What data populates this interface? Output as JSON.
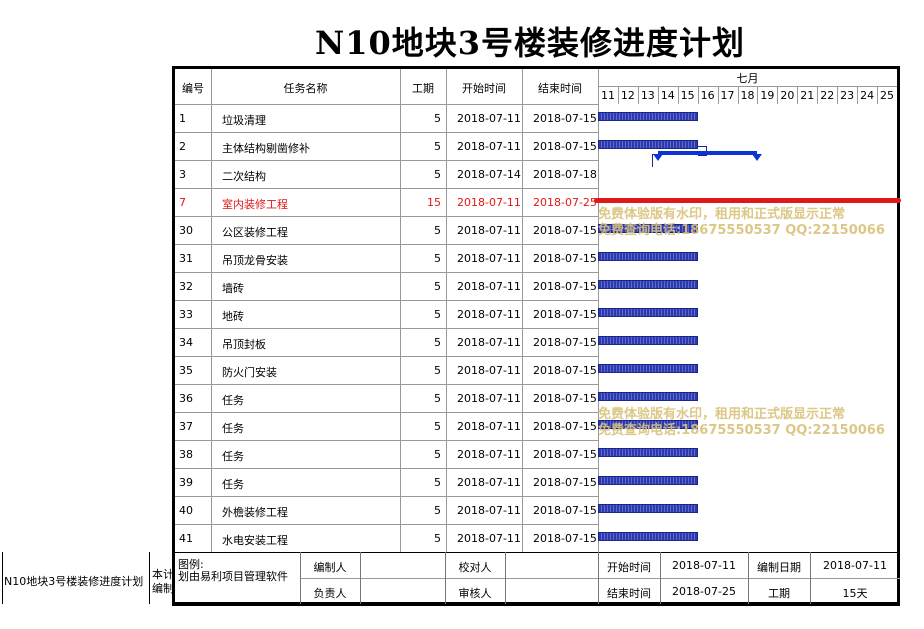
{
  "title": "N10地块3号楼装修进度计划",
  "columns": {
    "id": "编号",
    "name": "任务名称",
    "duration": "工期",
    "start": "开始时间",
    "end": "结束时间",
    "month": "七月",
    "days": [
      "11",
      "12",
      "13",
      "14",
      "15",
      "16",
      "17",
      "18",
      "19",
      "20",
      "21",
      "22",
      "23",
      "24",
      "25"
    ]
  },
  "tasks": [
    {
      "id": "1",
      "name": "垃圾清理",
      "duration": "5",
      "start": "2018-07-11",
      "end": "2018-07-15",
      "bar": [
        11,
        15
      ],
      "red": false
    },
    {
      "id": "2",
      "name": "主体结构剔凿修补",
      "duration": "5",
      "start": "2018-07-11",
      "end": "2018-07-15",
      "bar": [
        11,
        15
      ],
      "red": false
    },
    {
      "id": "3",
      "name": "二次结构",
      "duration": "5",
      "start": "2018-07-14",
      "end": "2018-07-18",
      "bar": [
        14,
        18
      ],
      "red": false,
      "summary": true
    },
    {
      "id": "7",
      "name": "室内装修工程",
      "duration": "15",
      "start": "2018-07-11",
      "end": "2018-07-25",
      "bar": [
        11,
        25
      ],
      "red": true
    },
    {
      "id": "30",
      "name": "公区装修工程",
      "duration": "5",
      "start": "2018-07-11",
      "end": "2018-07-15",
      "bar": [
        11,
        15
      ],
      "red": false
    },
    {
      "id": "31",
      "name": "吊顶龙骨安装",
      "duration": "5",
      "start": "2018-07-11",
      "end": "2018-07-15",
      "bar": [
        11,
        15
      ],
      "red": false
    },
    {
      "id": "32",
      "name": "墙砖",
      "duration": "5",
      "start": "2018-07-11",
      "end": "2018-07-15",
      "bar": [
        11,
        15
      ],
      "red": false
    },
    {
      "id": "33",
      "name": "地砖",
      "duration": "5",
      "start": "2018-07-11",
      "end": "2018-07-15",
      "bar": [
        11,
        15
      ],
      "red": false
    },
    {
      "id": "34",
      "name": "吊顶封板",
      "duration": "5",
      "start": "2018-07-11",
      "end": "2018-07-15",
      "bar": [
        11,
        15
      ],
      "red": false
    },
    {
      "id": "35",
      "name": "防火门安装",
      "duration": "5",
      "start": "2018-07-11",
      "end": "2018-07-15",
      "bar": [
        11,
        15
      ],
      "red": false
    },
    {
      "id": "36",
      "name": "任务",
      "duration": "5",
      "start": "2018-07-11",
      "end": "2018-07-15",
      "bar": [
        11,
        15
      ],
      "red": false
    },
    {
      "id": "37",
      "name": "任务",
      "duration": "5",
      "start": "2018-07-11",
      "end": "2018-07-15",
      "bar": [
        11,
        15
      ],
      "red": false
    },
    {
      "id": "38",
      "name": "任务",
      "duration": "5",
      "start": "2018-07-11",
      "end": "2018-07-15",
      "bar": [
        11,
        15
      ],
      "red": false
    },
    {
      "id": "39",
      "name": "任务",
      "duration": "5",
      "start": "2018-07-11",
      "end": "2018-07-15",
      "bar": [
        11,
        15
      ],
      "red": false
    },
    {
      "id": "40",
      "name": "外檐装修工程",
      "duration": "5",
      "start": "2018-07-11",
      "end": "2018-07-15",
      "bar": [
        11,
        15
      ],
      "red": false
    },
    {
      "id": "41",
      "name": "水电安装工程",
      "duration": "5",
      "start": "2018-07-11",
      "end": "2018-07-15",
      "bar": [
        11,
        15
      ],
      "red": false
    }
  ],
  "watermark": {
    "line1": "免费体验版有水印，租用和正式版显示正常",
    "line2": "免费查询电话:18675550537 QQ:22150066"
  },
  "footer": {
    "left_label": "N10地块3号楼装修进度计划",
    "side_text1": "本计",
    "side_text2": "编制",
    "legend": "图例:",
    "software": "划由易利项目管理软件",
    "compiler": "编制人",
    "responsible": "负责人",
    "checker": "校对人",
    "reviewer": "审核人",
    "start_label": "开始时间",
    "start_value": "2018-07-11",
    "end_label": "结束时间",
    "end_value": "2018-07-25",
    "date_label": "编制日期",
    "date_value": "2018-07-11",
    "duration_label": "工期",
    "duration_value": "15天"
  },
  "colors": {
    "bar": "#2e3aa8",
    "critical": "#e21818",
    "summary": "#0c33d6",
    "watermark": "#d9c27a"
  }
}
